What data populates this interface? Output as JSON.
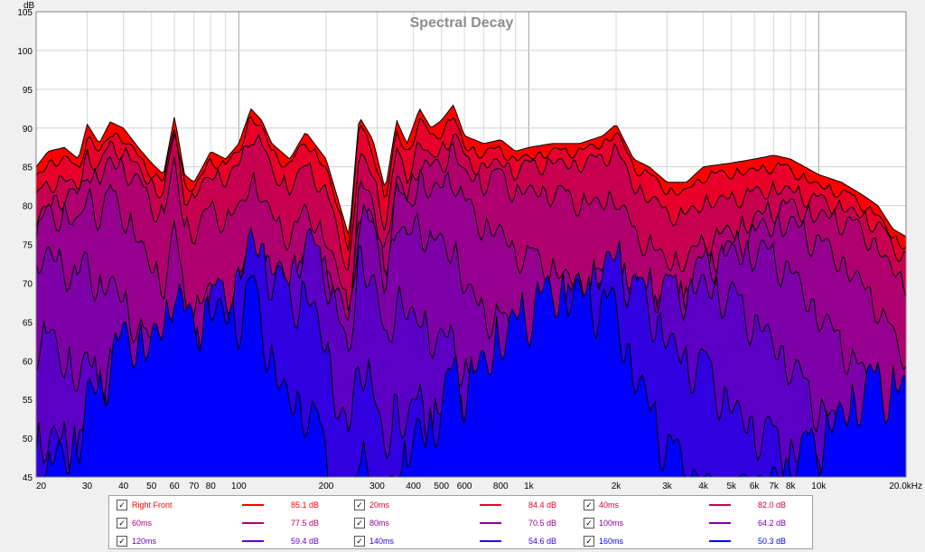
{
  "chart_data": {
    "type": "area",
    "title": "Spectral Decay",
    "ylabel": "dB",
    "xlabel": "",
    "xscale": "log",
    "xlim": [
      20,
      20000
    ],
    "ylim": [
      45,
      105
    ],
    "yticks": [
      45,
      50,
      55,
      60,
      65,
      70,
      75,
      80,
      85,
      90,
      95,
      100,
      105
    ],
    "xticks": [
      {
        "v": 20,
        "label": "20"
      },
      {
        "v": 30,
        "label": "30"
      },
      {
        "v": 40,
        "label": "40"
      },
      {
        "v": 50,
        "label": "50"
      },
      {
        "v": 60,
        "label": "60"
      },
      {
        "v": 70,
        "label": "70"
      },
      {
        "v": 80,
        "label": "80"
      },
      {
        "v": 100,
        "label": "100"
      },
      {
        "v": 200,
        "label": "200"
      },
      {
        "v": 300,
        "label": "300"
      },
      {
        "v": 400,
        "label": "400"
      },
      {
        "v": 500,
        "label": "500"
      },
      {
        "v": 600,
        "label": "600"
      },
      {
        "v": 800,
        "label": "800"
      },
      {
        "v": 1000,
        "label": "1k"
      },
      {
        "v": 2000,
        "label": "2k"
      },
      {
        "v": 3000,
        "label": "3k"
      },
      {
        "v": 4000,
        "label": "4k"
      },
      {
        "v": 5000,
        "label": "5k"
      },
      {
        "v": 6000,
        "label": "6k"
      },
      {
        "v": 7000,
        "label": "7k"
      },
      {
        "v": 8000,
        "label": "8k"
      },
      {
        "v": 10000,
        "label": "10k"
      },
      {
        "v": 20000,
        "label": "20.0kHz"
      }
    ],
    "grid": true,
    "series": [
      {
        "name": "Right Front",
        "value": "85.1 dB",
        "color": "#ff0000"
      },
      {
        "name": "20ms",
        "value": "84.4 dB",
        "color": "#e8002a"
      },
      {
        "name": "40ms",
        "value": "82.0 dB",
        "color": "#c80050"
      },
      {
        "name": "60ms",
        "value": "77.5 dB",
        "color": "#b00070"
      },
      {
        "name": "80ms",
        "value": "70.5 dB",
        "color": "#96008e"
      },
      {
        "name": "100ms",
        "value": "64.2 dB",
        "color": "#7e00a8"
      },
      {
        "name": "120ms",
        "value": "59.4 dB",
        "color": "#5c00c6"
      },
      {
        "name": "140ms",
        "value": "54.6 dB",
        "color": "#3000e0"
      },
      {
        "name": "160ms",
        "value": "50.3 dB",
        "color": "#0000ff"
      }
    ],
    "envelope_points": [
      [
        20,
        85
      ],
      [
        22,
        87
      ],
      [
        25,
        87.5
      ],
      [
        28,
        86
      ],
      [
        30,
        90.5
      ],
      [
        33,
        88
      ],
      [
        36,
        90.8
      ],
      [
        40,
        90
      ],
      [
        45,
        87.5
      ],
      [
        50,
        85.5
      ],
      [
        55,
        84
      ],
      [
        60,
        91.5
      ],
      [
        65,
        84
      ],
      [
        70,
        83
      ],
      [
        75,
        85
      ],
      [
        80,
        87
      ],
      [
        90,
        86
      ],
      [
        100,
        88
      ],
      [
        110,
        92.5
      ],
      [
        120,
        91
      ],
      [
        130,
        88
      ],
      [
        150,
        86
      ],
      [
        170,
        89.5
      ],
      [
        200,
        86
      ],
      [
        240,
        76
      ],
      [
        260,
        91.5
      ],
      [
        290,
        88.5
      ],
      [
        320,
        82
      ],
      [
        350,
        91
      ],
      [
        380,
        88
      ],
      [
        420,
        92.5
      ],
      [
        460,
        90
      ],
      [
        500,
        91
      ],
      [
        550,
        93
      ],
      [
        600,
        89
      ],
      [
        700,
        88
      ],
      [
        800,
        88.5
      ],
      [
        900,
        87
      ],
      [
        1000,
        87.5
      ],
      [
        1200,
        88
      ],
      [
        1500,
        88
      ],
      [
        1800,
        89
      ],
      [
        2000,
        90.5
      ],
      [
        2300,
        86
      ],
      [
        2600,
        85
      ],
      [
        3000,
        83
      ],
      [
        3500,
        83
      ],
      [
        4000,
        85
      ],
      [
        5000,
        85.5
      ],
      [
        6000,
        86
      ],
      [
        7000,
        86.5
      ],
      [
        8000,
        86
      ],
      [
        10000,
        84
      ],
      [
        12000,
        83
      ],
      [
        14000,
        81.5
      ],
      [
        16000,
        80
      ],
      [
        18000,
        77
      ],
      [
        20000,
        76
      ]
    ]
  }
}
